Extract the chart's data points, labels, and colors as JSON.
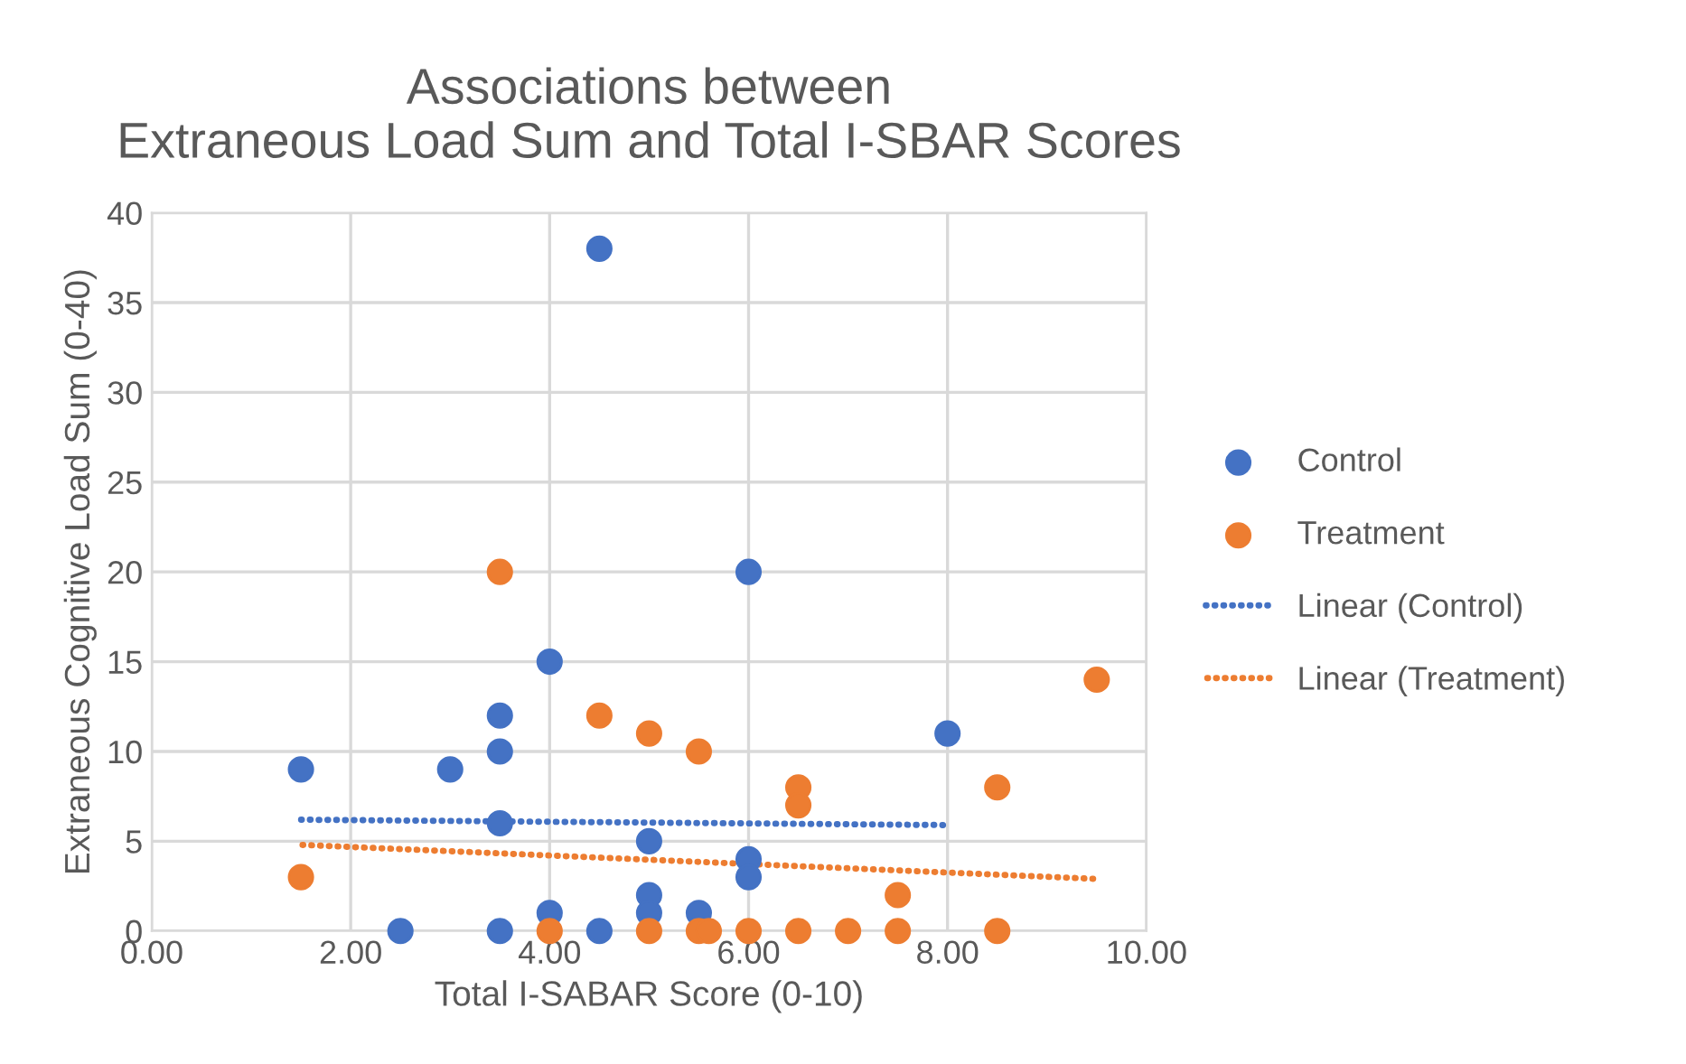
{
  "chart_data": {
    "type": "scatter",
    "title": "Associations between\nExtraneous Load Sum and Total I-SBAR Scores",
    "xlabel": "Total I-SABAR Score (0-10)",
    "ylabel": "Extraneous Cognitive Load Sum (0-40)",
    "xlim": [
      0,
      10
    ],
    "xticks": [
      {
        "value": 0,
        "label": "0.00"
      },
      {
        "value": 2,
        "label": "2.00"
      },
      {
        "value": 4,
        "label": "4.00"
      },
      {
        "value": 6,
        "label": "6.00"
      },
      {
        "value": 8,
        "label": "8.00"
      },
      {
        "value": 10,
        "label": "10.00"
      }
    ],
    "ylim": [
      0,
      40
    ],
    "yticks": [
      0,
      5,
      10,
      15,
      20,
      25,
      30,
      35,
      40
    ],
    "grid": true,
    "legend": "right",
    "series": [
      {
        "name": "Control",
        "color": "#4472c4",
        "marker": "circle",
        "x": [
          1.5,
          2.5,
          3,
          3.5,
          3.5,
          3.5,
          3.5,
          4,
          4,
          4.5,
          4.5,
          5,
          5,
          5,
          5.5,
          6,
          6,
          6,
          8
        ],
        "values": [
          9,
          0,
          9,
          12,
          10,
          6,
          0,
          15,
          1,
          38,
          0,
          5,
          2,
          1,
          1,
          20,
          4,
          3,
          11
        ]
      },
      {
        "name": "Treatment",
        "color": "#ed7d31",
        "marker": "circle",
        "x": [
          1.5,
          3.5,
          4,
          4.5,
          5,
          5,
          5.5,
          5.5,
          5.6,
          6,
          6.5,
          6.5,
          6.5,
          7,
          7.5,
          7.5,
          8.5,
          8.5,
          9.5
        ],
        "values": [
          3,
          20,
          0,
          12,
          11,
          0,
          10,
          0,
          0,
          0,
          8,
          7,
          0,
          0,
          2,
          0,
          8,
          0,
          14
        ]
      },
      {
        "name": "Linear (Control)",
        "type": "line",
        "line_style": "dotted",
        "color": "#4472c4",
        "x": [
          1.5,
          8
        ],
        "values": [
          6.2,
          5.9
        ]
      },
      {
        "name": "Linear (Treatment)",
        "type": "line",
        "line_style": "dotted",
        "color": "#ed7d31",
        "x": [
          1.5,
          9.5
        ],
        "values": [
          4.8,
          2.9
        ]
      }
    ]
  }
}
